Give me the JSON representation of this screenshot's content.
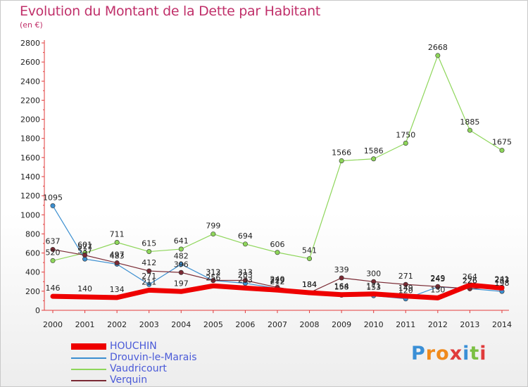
{
  "header": {
    "title": "Evolution du Montant de la Dette par Habitant",
    "subtitle": "(en €)"
  },
  "brand": {
    "letters": [
      "P",
      "r",
      "o",
      "x",
      "i",
      "t",
      "i"
    ],
    "colors": [
      "#3a8fd6",
      "#f08a1c",
      "#f08a1c",
      "#e03b3b",
      "#3a8fd6",
      "#7bc043",
      "#e03b3b"
    ]
  },
  "chart_data": {
    "type": "line",
    "x": [
      "2000",
      "2001",
      "2002",
      "2003",
      "2004",
      "2005",
      "2006",
      "2007",
      "2008",
      "2009",
      "2010",
      "2011",
      "2012",
      "2013",
      "2014"
    ],
    "yticks": [
      "0",
      "200",
      "400",
      "600",
      "800",
      "1000",
      "1200",
      "1400",
      "1600",
      "1800",
      "2000",
      "2200",
      "2400",
      "2600",
      "2800"
    ],
    "ylim": [
      0,
      2800
    ],
    "grid": false,
    "legend_position": "bottom-left",
    "series": [
      {
        "name": "Vaudricourt",
        "color": "#8ed65a",
        "width": 1.2,
        "values": [
          520,
          601,
          711,
          615,
          641,
          799,
          694,
          606,
          541,
          1566,
          1586,
          1750,
          2668,
          1885,
          1675
        ],
        "labels": [
          "520",
          "601",
          "711",
          "615",
          "641",
          "799",
          "694",
          "606",
          "541",
          "1566",
          "1586",
          "1750",
          "2668",
          "1885",
          "1675"
        ]
      },
      {
        "name": "Drouvin-le-Marais",
        "color": "#3c8fd0",
        "width": 1.2,
        "values": [
          1095,
          537,
          483,
          271,
          482,
          312,
          283,
          229,
          184,
          158,
          153,
          120,
          245,
          226,
          198
        ],
        "labels": [
          "1095",
          "537",
          "483",
          "271",
          "482",
          "312",
          "283",
          "229",
          "184",
          "158",
          "153",
          "120",
          "245",
          "226",
          "198"
        ]
      },
      {
        "name": "Verquin",
        "color": "#7a2a34",
        "width": 1.2,
        "values": [
          637,
          577,
          497,
          412,
          396,
          313,
          313,
          240,
          184,
          339,
          300,
          271,
          249,
          226,
          241
        ],
        "labels": [
          "637",
          "577",
          "497",
          "412",
          "396",
          "313",
          "313",
          "240",
          "184",
          "339",
          "300",
          "271",
          "249",
          "226",
          "241"
        ]
      },
      {
        "name": "HOUCHIN",
        "color": "#ee0000",
        "width": 7,
        "values": [
          146,
          140,
          134,
          211,
          197,
          256,
          233,
          212,
          184,
          164,
          171,
          149,
          130,
          264,
          233
        ],
        "labels": [
          "146",
          "140",
          "134",
          "211",
          "197",
          "256",
          "233",
          "212",
          "184",
          "164",
          "171",
          "149",
          "130",
          "264",
          "233"
        ]
      }
    ]
  },
  "legend": {
    "items": [
      {
        "name": "HOUCHIN",
        "color": "#ee0000",
        "thickness": 9
      },
      {
        "name": "Drouvin-le-Marais",
        "color": "#3c8fd0",
        "thickness": 2
      },
      {
        "name": "Vaudricourt",
        "color": "#8ed65a",
        "thickness": 2
      },
      {
        "name": "Verquin",
        "color": "#7a2a34",
        "thickness": 2
      }
    ]
  }
}
